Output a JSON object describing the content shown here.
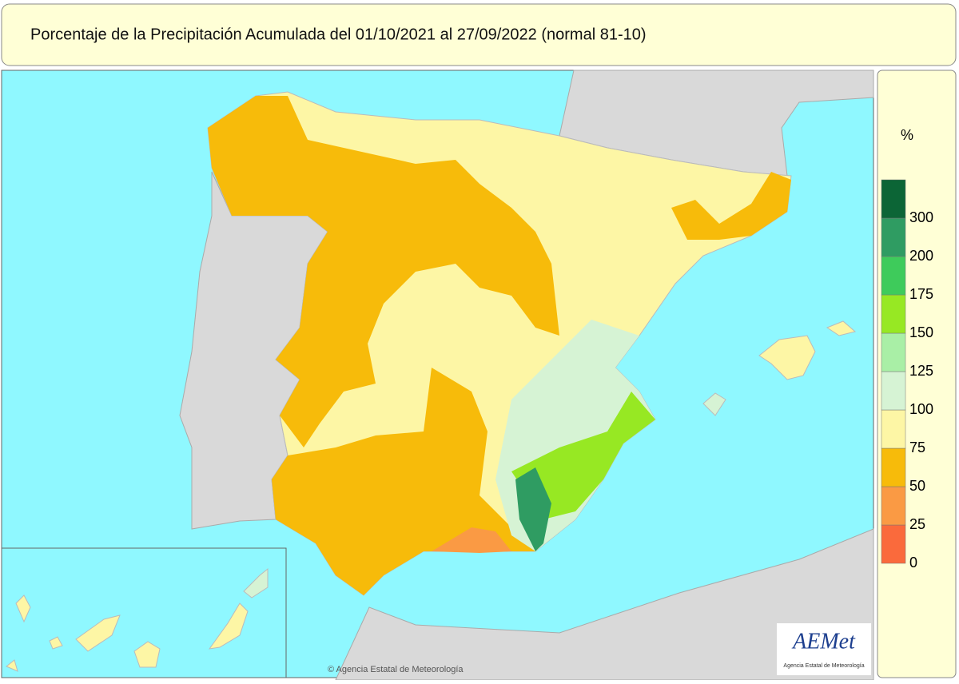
{
  "title": "Porcentaje de la Precipitación Acumulada del 01/10/2021 al 27/09/2022 (normal 81-10)",
  "legend": {
    "unit": "%",
    "breaks": [
      0,
      25,
      50,
      75,
      100,
      125,
      150,
      175,
      200,
      300
    ],
    "colors": [
      "#fa6a3c",
      "#fa9a44",
      "#f7bb0a",
      "#fdf6a5",
      "#d6f3d4",
      "#a9efa6",
      "#97e823",
      "#3ecb5b",
      "#2f9c62",
      "#0c6536"
    ]
  },
  "copyright": "© Agencia Estatal de Meteorología",
  "logo": {
    "name": "AEMet",
    "subtitle": "Agencia Estatal de Meteorología"
  }
}
